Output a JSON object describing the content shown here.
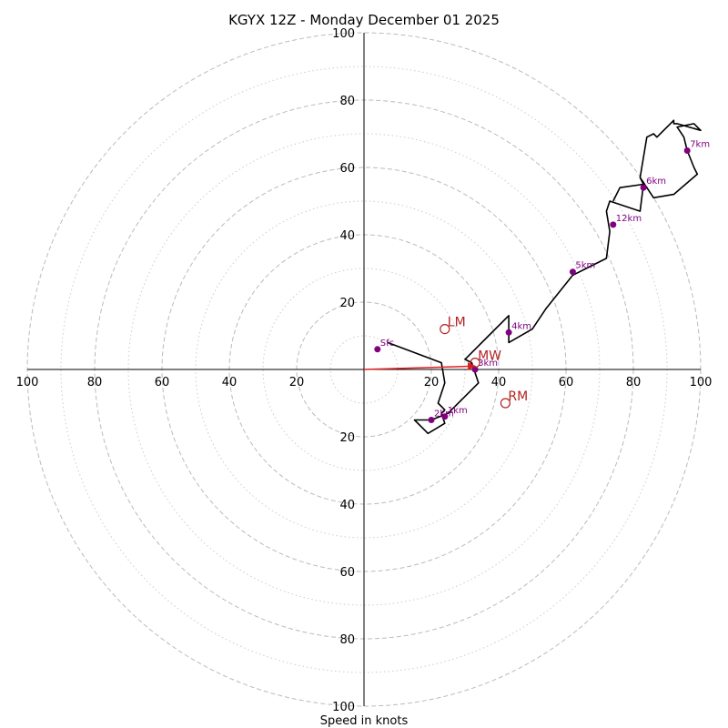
{
  "chart_data": {
    "type": "hodograph",
    "title": "KGYX 12Z - Monday December 01 2025",
    "xlabel": "Speed in knots",
    "rmax": 100,
    "ring_major": [
      20,
      40,
      60,
      80,
      100
    ],
    "ring_minor": [
      10,
      30,
      50,
      70,
      90
    ],
    "x_tick_labels": [
      "100",
      "80",
      "60",
      "40",
      "20",
      "20",
      "40",
      "60",
      "80",
      "100"
    ],
    "y_tick_labels": [
      "100",
      "80",
      "60",
      "40",
      "20",
      "20",
      "40",
      "60",
      "80",
      "100"
    ],
    "x_tick_values": [
      -100,
      -80,
      -60,
      -40,
      -20,
      20,
      40,
      60,
      80,
      100
    ],
    "y_tick_values": [
      100,
      80,
      60,
      40,
      20,
      -20,
      -40,
      -60,
      -80,
      -100
    ],
    "trace": [
      [
        7,
        8
      ],
      [
        23,
        2
      ],
      [
        24,
        -4
      ],
      [
        22,
        -10
      ],
      [
        24,
        -12
      ],
      [
        23,
        -13
      ],
      [
        24,
        -16
      ],
      [
        19,
        -19
      ],
      [
        18,
        -18
      ],
      [
        15,
        -15
      ],
      [
        20,
        -15
      ],
      [
        25,
        -13
      ],
      [
        34,
        -4
      ],
      [
        33,
        -1
      ],
      [
        32,
        2
      ],
      [
        30,
        3
      ],
      [
        33,
        6
      ],
      [
        37,
        10
      ],
      [
        43,
        16
      ],
      [
        43,
        8
      ],
      [
        50,
        12
      ],
      [
        54,
        18
      ],
      [
        62,
        28
      ],
      [
        66,
        30
      ],
      [
        72,
        33
      ],
      [
        73,
        41
      ],
      [
        72,
        47
      ],
      [
        73,
        50
      ],
      [
        82,
        47
      ],
      [
        83,
        55
      ],
      [
        82,
        57
      ],
      [
        86,
        51
      ],
      [
        92,
        52
      ],
      [
        99,
        58
      ],
      [
        98,
        60
      ],
      [
        96,
        65
      ],
      [
        95,
        69
      ],
      [
        93,
        72
      ],
      [
        98,
        73
      ],
      [
        100,
        71
      ],
      [
        93,
        73
      ],
      [
        92,
        73
      ],
      [
        92,
        74
      ],
      [
        91,
        73
      ],
      [
        87,
        69
      ],
      [
        86,
        70
      ],
      [
        84,
        69
      ],
      [
        82,
        57
      ],
      [
        83,
        55
      ],
      [
        76,
        54
      ],
      [
        74,
        50
      ]
    ],
    "height_markers": [
      {
        "label": "Sfc",
        "u": 4,
        "v": 6
      },
      {
        "label": "1km",
        "u": 24,
        "v": -14
      },
      {
        "label": "2km",
        "u": 20,
        "v": -15
      },
      {
        "label": "3km",
        "u": 33,
        "v": 0
      },
      {
        "label": "4km",
        "u": 43,
        "v": 11
      },
      {
        "label": "5km",
        "u": 62,
        "v": 29
      },
      {
        "label": "6km",
        "u": 83,
        "v": 54
      },
      {
        "label": "7km",
        "u": 96,
        "v": 65
      },
      {
        "label": "12km",
        "u": 74,
        "v": 43
      }
    ],
    "motion_markers": [
      {
        "label": "LM",
        "u": 24,
        "v": 12
      },
      {
        "label": "MW",
        "u": 33,
        "v": 2
      },
      {
        "label": "RM",
        "u": 42,
        "v": -10
      }
    ],
    "mean_wind_vector": {
      "u": 33,
      "v": 1
    },
    "colors": {
      "trace": "#000000",
      "height_marker": "#800080",
      "motion_marker": "#b22222",
      "vector": "#e02020",
      "ring": "#bbbbbb",
      "axis": "#000000"
    }
  }
}
